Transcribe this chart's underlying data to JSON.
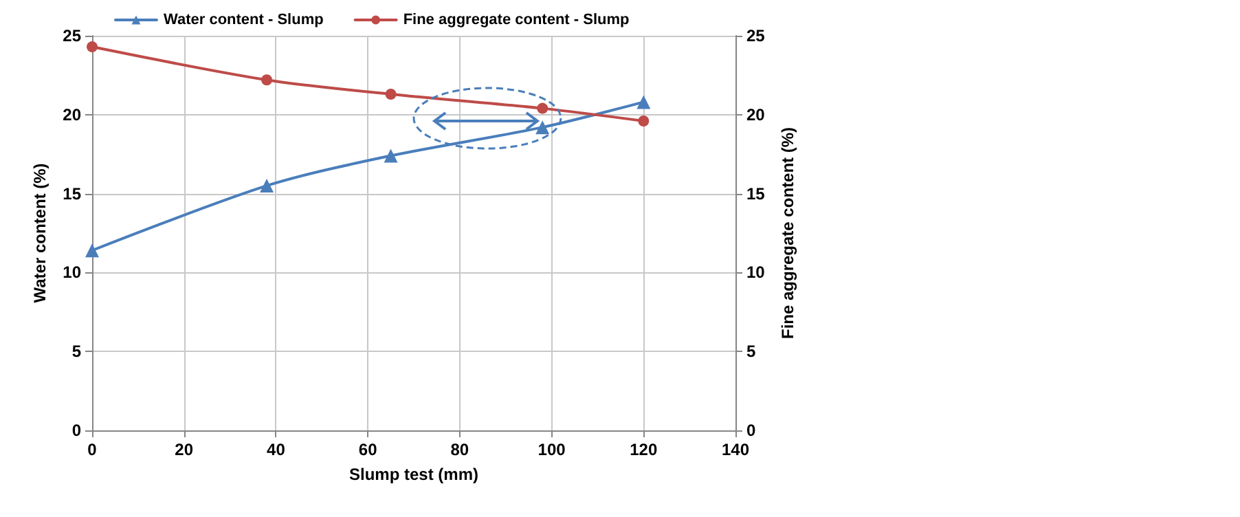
{
  "chart_data": {
    "type": "line",
    "xlabel": "Slump test (mm)",
    "ylabel": "Water content (%)",
    "y2label": "Fine aggregate content (%)",
    "xlim": [
      0,
      140
    ],
    "xticks": [
      0,
      20,
      40,
      60,
      80,
      100,
      120,
      140
    ],
    "ylim": [
      0,
      25
    ],
    "yticks": [
      0,
      5,
      10,
      15,
      20,
      25
    ],
    "y2lim": [
      0,
      25
    ],
    "y2ticks": [
      0,
      5,
      10,
      15,
      20,
      25
    ],
    "grid": true,
    "legend": "top",
    "series": [
      {
        "name": "Water content - Slump",
        "color": "#4a7ebb",
        "marker": "triangle",
        "x": [
          0,
          38,
          65,
          98,
          120
        ],
        "values": [
          11.4,
          15.5,
          17.4,
          19.2,
          20.8
        ]
      },
      {
        "name": "Fine aggregate content - Slump",
        "color": "#be4b48",
        "marker": "circle",
        "axis": "y2",
        "x": [
          0,
          38,
          65,
          98,
          120
        ],
        "values": [
          24.3,
          22.2,
          21.3,
          20.4,
          19.6
        ]
      }
    ]
  }
}
